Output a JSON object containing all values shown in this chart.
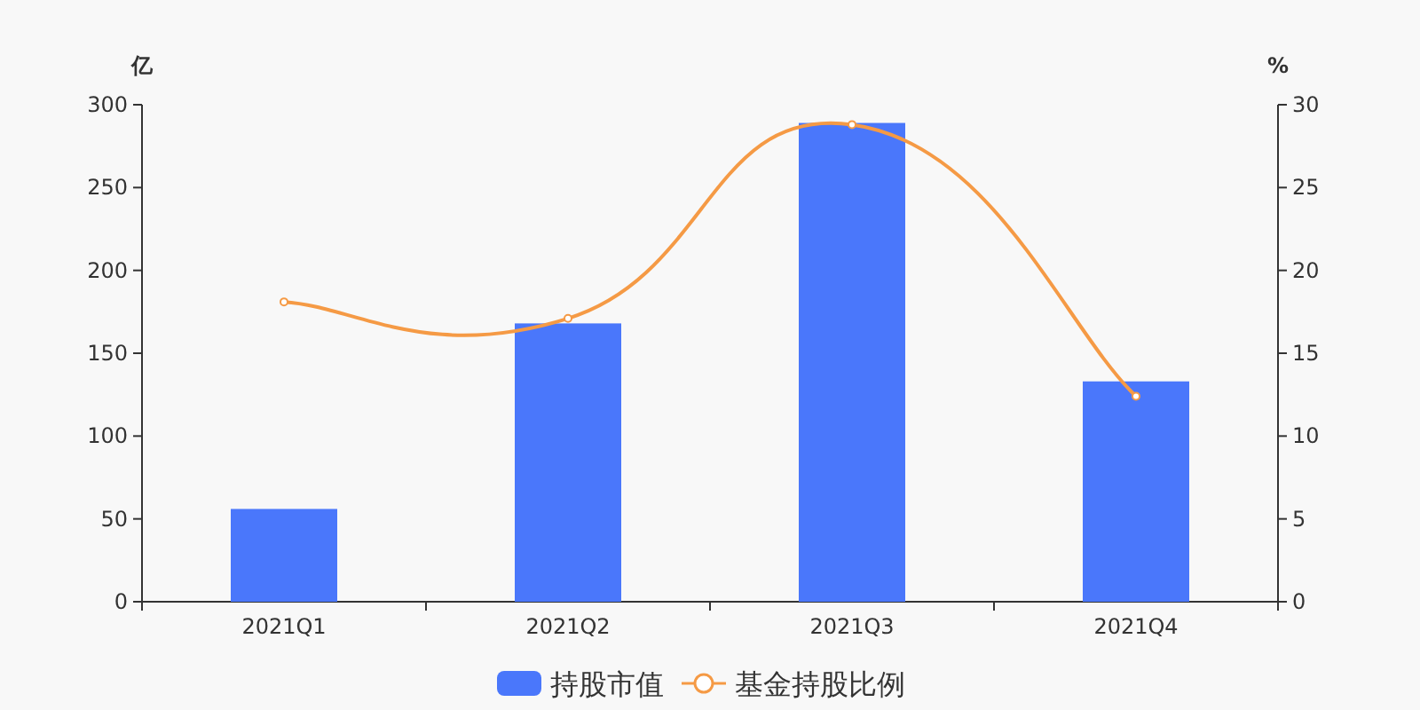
{
  "chart_data": {
    "type": "bar",
    "categories": [
      "2021Q1",
      "2021Q2",
      "2021Q3",
      "2021Q4"
    ],
    "series": [
      {
        "name": "持股市值",
        "color": "#4a77fb",
        "values": [
          56,
          168,
          289,
          133
        ]
      },
      {
        "name": "基金持股比例",
        "type": "line",
        "axis": "y2",
        "color": "#f59a45",
        "marker": "circle",
        "values": [
          18.1,
          17.1,
          28.8,
          12.4
        ]
      }
    ],
    "ylabel": "亿",
    "y2label": "%",
    "ylim": [
      0,
      300
    ],
    "yticks": [
      0,
      50,
      100,
      150,
      200,
      250,
      300
    ],
    "y2lim": [
      0,
      30
    ],
    "y2ticks": [
      0,
      5,
      10,
      15,
      20,
      25,
      30
    ],
    "legend": "bottom"
  }
}
